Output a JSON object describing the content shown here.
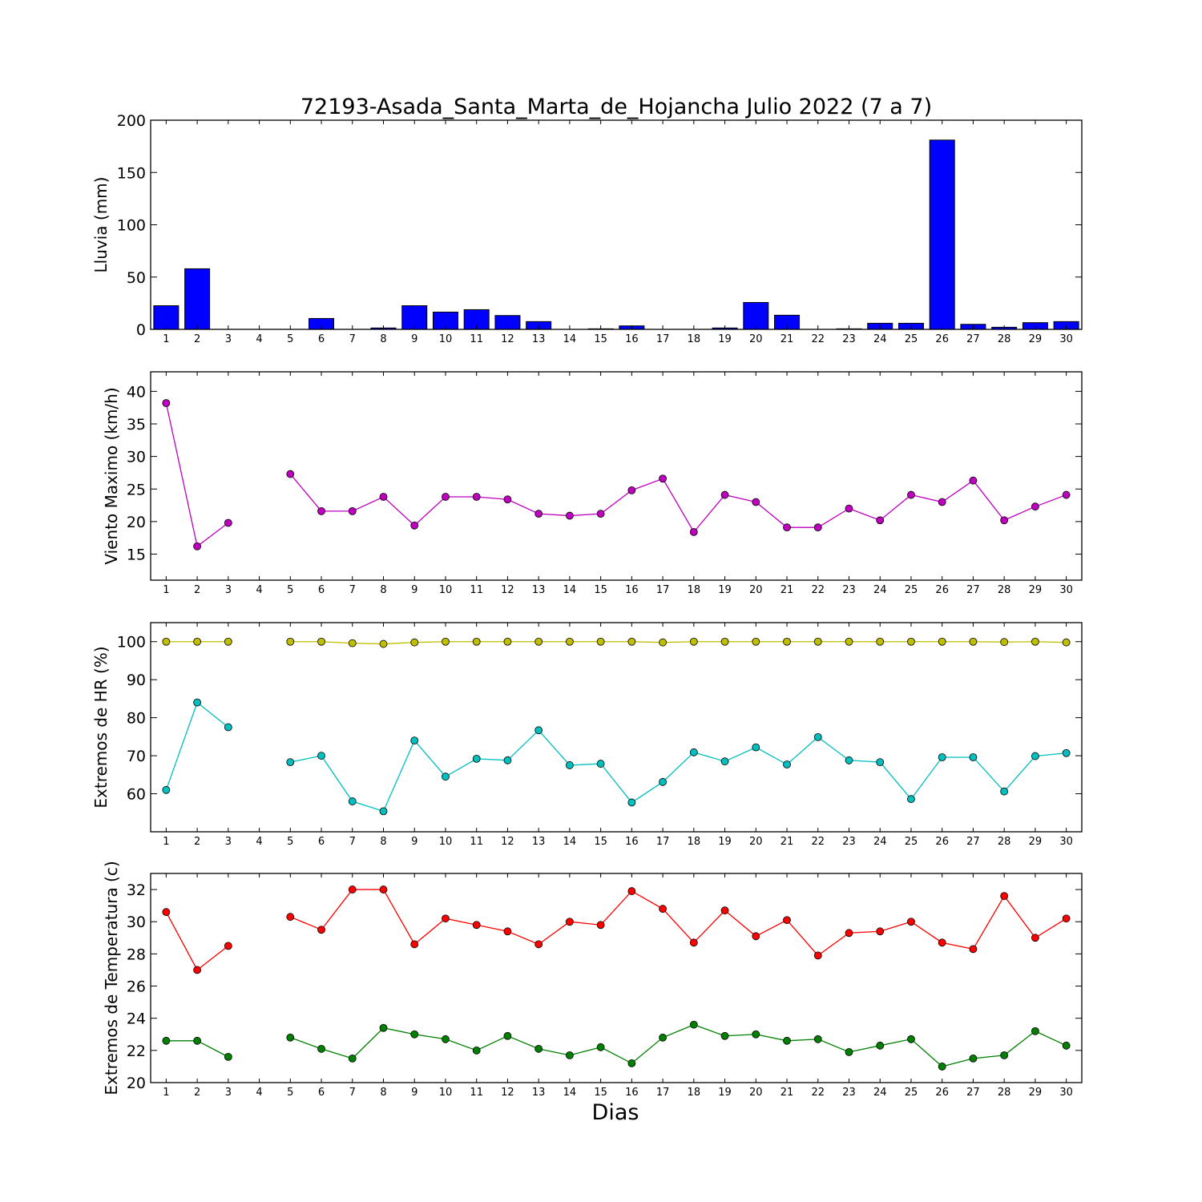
{
  "figure": {
    "title": "72193-Asada_Santa_Marta_de_Hojancha Julio 2022  (7 a 7)",
    "xlabel": "Dias"
  },
  "chart_data": [
    {
      "type": "bar",
      "ylabel": "Lluvia (mm)",
      "ylim": [
        0,
        200
      ],
      "yticks": [
        0,
        50,
        100,
        150,
        200
      ],
      "categories": [
        1,
        2,
        3,
        4,
        5,
        6,
        7,
        8,
        9,
        10,
        11,
        12,
        13,
        14,
        15,
        16,
        17,
        18,
        19,
        20,
        21,
        22,
        23,
        24,
        25,
        26,
        27,
        28,
        29,
        30
      ],
      "values": [
        22.6,
        57.9,
        0,
        0,
        0,
        10.4,
        0,
        1.3,
        22.6,
        16.5,
        18.8,
        13.2,
        7.4,
        0,
        0.5,
        3.3,
        0,
        0,
        1.3,
        25.7,
        13.5,
        0,
        0.5,
        5.8,
        5.8,
        181.0,
        4.8,
        2.0,
        6.4,
        7.4
      ],
      "color": "#0000ff"
    },
    {
      "type": "line",
      "ylabel": "Viento Maximo (km/h)",
      "ylim": [
        11,
        43
      ],
      "yticks": [
        15,
        20,
        25,
        30,
        35,
        40
      ],
      "x": [
        1,
        2,
        3,
        4,
        5,
        6,
        7,
        8,
        9,
        10,
        11,
        12,
        13,
        14,
        15,
        16,
        17,
        18,
        19,
        20,
        21,
        22,
        23,
        24,
        25,
        26,
        27,
        28,
        29,
        30
      ],
      "series": [
        {
          "color": "#bf00bf",
          "values": [
            38.2,
            16.2,
            19.8,
            null,
            27.3,
            21.6,
            21.6,
            23.8,
            19.4,
            23.8,
            23.8,
            23.4,
            21.2,
            20.9,
            21.2,
            24.8,
            26.6,
            18.4,
            24.1,
            23.0,
            19.1,
            19.1,
            22.0,
            20.2,
            24.1,
            23.0,
            26.3,
            20.2,
            22.3,
            24.1
          ]
        }
      ]
    },
    {
      "type": "line",
      "ylabel": "Extremos de HR (%)",
      "ylim": [
        50,
        105
      ],
      "yticks": [
        60,
        70,
        80,
        90,
        100
      ],
      "x": [
        1,
        2,
        3,
        4,
        5,
        6,
        7,
        8,
        9,
        10,
        11,
        12,
        13,
        14,
        15,
        16,
        17,
        18,
        19,
        20,
        21,
        22,
        23,
        24,
        25,
        26,
        27,
        28,
        29,
        30
      ],
      "series": [
        {
          "color": "#bfbf00",
          "values": [
            100,
            100,
            100,
            null,
            100,
            100,
            99.6,
            99.4,
            99.8,
            100,
            100,
            100,
            100,
            100,
            100,
            100,
            99.8,
            100,
            100,
            100,
            100,
            100,
            100,
            100,
            100,
            100,
            100,
            99.9,
            100,
            99.8
          ]
        },
        {
          "color": "#00bfbf",
          "values": [
            61.0,
            84.0,
            77.5,
            null,
            68.3,
            70.0,
            58.0,
            55.4,
            74.0,
            64.5,
            69.2,
            68.8,
            76.7,
            67.5,
            67.9,
            57.7,
            63.1,
            70.9,
            68.5,
            72.2,
            67.7,
            74.9,
            68.8,
            68.3,
            58.6,
            69.6,
            69.6,
            60.6,
            69.9,
            70.7
          ]
        }
      ]
    },
    {
      "type": "line",
      "ylabel": "Extremos de Temperatura (c)",
      "ylim": [
        20,
        33
      ],
      "yticks": [
        20,
        22,
        24,
        26,
        28,
        30,
        32
      ],
      "x": [
        1,
        2,
        3,
        4,
        5,
        6,
        7,
        8,
        9,
        10,
        11,
        12,
        13,
        14,
        15,
        16,
        17,
        18,
        19,
        20,
        21,
        22,
        23,
        24,
        25,
        26,
        27,
        28,
        29,
        30
      ],
      "series": [
        {
          "color": "#ff0000",
          "values": [
            30.6,
            27.0,
            28.5,
            null,
            30.3,
            29.5,
            32.0,
            32.0,
            28.6,
            30.2,
            29.8,
            29.4,
            28.6,
            30.0,
            29.8,
            31.9,
            30.8,
            28.7,
            30.7,
            29.1,
            30.1,
            27.9,
            29.3,
            29.4,
            30.0,
            28.7,
            28.3,
            31.6,
            29.0,
            30.2
          ]
        },
        {
          "color": "#008000",
          "values": [
            22.6,
            22.6,
            21.6,
            null,
            22.8,
            22.1,
            21.5,
            23.4,
            23.0,
            22.7,
            22.0,
            22.9,
            22.1,
            21.7,
            22.2,
            21.2,
            22.8,
            23.6,
            22.9,
            23.0,
            22.6,
            22.7,
            21.9,
            22.3,
            22.7,
            21.0,
            21.5,
            21.7,
            23.2,
            22.3
          ]
        }
      ]
    }
  ]
}
